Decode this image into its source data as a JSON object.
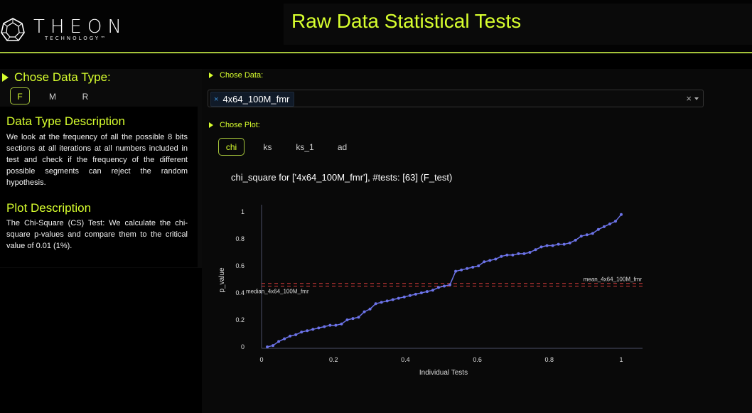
{
  "header": {
    "logo_text": "THEON",
    "logo_subtext": "TECHNOLOGY™",
    "title": "Raw Data Statistical Tests"
  },
  "sidebar": {
    "data_type_heading": "Chose Data Type:",
    "data_types": [
      {
        "label": "F",
        "active": true
      },
      {
        "label": "M",
        "active": false
      },
      {
        "label": "R",
        "active": false
      }
    ],
    "data_type_desc_heading": "Data Type Description",
    "data_type_desc": "We look at the frequency of all the possible 8 bits sections at all iterations at all numbers included in test and check if the frequency of the different possible segments can reject the random hypothesis.",
    "plot_desc_heading": "Plot Description",
    "plot_desc": "The Chi-Square (CS) Test: We calculate the chi-square p-values and compare them to the critical value of 0.01 (1%)."
  },
  "main": {
    "chose_data_label": "Chose Data:",
    "selected_data": "4x64_100M_fmr",
    "chip_remove": "×",
    "clear_icon": "×",
    "chose_plot_label": "Chose Plot:",
    "plot_tabs": [
      {
        "label": "chi",
        "active": true
      },
      {
        "label": "ks",
        "active": false
      },
      {
        "label": "ks_1",
        "active": false
      },
      {
        "label": "ad",
        "active": false
      }
    ]
  },
  "colors": {
    "accent": "#d8ff2e",
    "accent_border": "#a5c43a",
    "series": "#6c73e8",
    "reference_lines": "#d33a3a"
  },
  "chart_data": {
    "type": "line",
    "title": "chi_square for ['4x64_100M_fmr'], #tests: [63] (F_test)",
    "xlabel": "Individual Tests",
    "ylabel": "p_value",
    "xlim": [
      0,
      1.06
    ],
    "ylim": [
      0,
      1.04
    ],
    "xticks": [
      "0",
      "0.2",
      "0.4",
      "0.6",
      "0.8",
      "1"
    ],
    "xtick_values": [
      0,
      0.2,
      0.4,
      0.6,
      0.8,
      1
    ],
    "yticks": [
      "0",
      "0.2",
      "0.4",
      "0.6",
      "0.8",
      "1"
    ],
    "ytick_values": [
      0,
      0.2,
      0.4,
      0.6,
      0.8,
      1
    ],
    "grid": false,
    "series": [
      {
        "values": [
          0.0,
          0.01,
          0.04,
          0.06,
          0.08,
          0.09,
          0.11,
          0.12,
          0.13,
          0.14,
          0.15,
          0.16,
          0.16,
          0.17,
          0.2,
          0.21,
          0.22,
          0.26,
          0.28,
          0.32,
          0.33,
          0.34,
          0.35,
          0.36,
          0.37,
          0.38,
          0.39,
          0.4,
          0.41,
          0.42,
          0.44,
          0.45,
          0.46,
          0.56,
          0.57,
          0.58,
          0.59,
          0.6,
          0.63,
          0.64,
          0.65,
          0.67,
          0.68,
          0.68,
          0.69,
          0.69,
          0.7,
          0.72,
          0.74,
          0.75,
          0.75,
          0.76,
          0.76,
          0.77,
          0.79,
          0.82,
          0.83,
          0.84,
          0.87,
          0.89,
          0.91,
          0.93,
          0.98
        ]
      }
    ],
    "reference_lines": [
      {
        "label": "median_4x64_100M_fmr",
        "y": 0.45,
        "label_side": "left"
      },
      {
        "label": "mean_4x64_100M_fmr",
        "y": 0.47,
        "label_side": "right"
      }
    ]
  }
}
